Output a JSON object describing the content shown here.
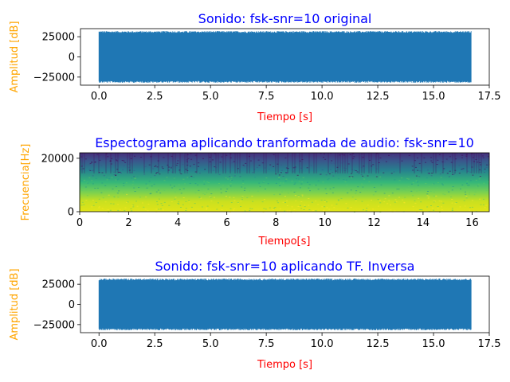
{
  "chart_data": [
    {
      "type": "line",
      "title": "Sonido: fsk-snr=10 original",
      "xlabel": "Tiempo [s]",
      "ylabel": "Amplitud [dB]",
      "xlim": [
        -0.83,
        17.5
      ],
      "ylim": [
        -35000,
        35000
      ],
      "xticks": [
        0.0,
        2.5,
        5.0,
        7.5,
        10.0,
        12.5,
        15.0,
        17.5
      ],
      "xtick_labels": [
        "0.0",
        "2.5",
        "5.0",
        "7.5",
        "10.0",
        "12.5",
        "15.0",
        "17.5"
      ],
      "yticks": [
        25000,
        0,
        -25000
      ],
      "ytick_labels": [
        "25000",
        "0",
        "−25000"
      ],
      "series": [
        {
          "x_range": [
            0,
            16.7
          ],
          "envelope": [
            -32000,
            32000
          ],
          "color": "#1f77b4"
        }
      ],
      "grid": false
    },
    {
      "type": "heatmap",
      "title": "Espectograma aplicando tranformada de audio: fsk-snr=10",
      "xlabel": "Tiempo[s]",
      "ylabel": "Frecuencia[Hz]",
      "xlim": [
        0,
        16.7
      ],
      "ylim": [
        0,
        22050
      ],
      "xticks": [
        0,
        2,
        4,
        6,
        8,
        10,
        12,
        14,
        16
      ],
      "xtick_labels": [
        "0",
        "2",
        "4",
        "6",
        "8",
        "10",
        "12",
        "14",
        "16"
      ],
      "yticks": [
        20000,
        0
      ],
      "ytick_labels": [
        "20000",
        "0"
      ],
      "colormap": [
        "#440154",
        "#3b528b",
        "#21918c",
        "#5ec962",
        "#fde725"
      ],
      "grid": false
    },
    {
      "type": "line",
      "title": "Sonido: fsk-snr=10 aplicando TF. Inversa",
      "xlabel": "Tiempo [s]",
      "ylabel": "Amplitud [dB]",
      "xlim": [
        -0.83,
        17.5
      ],
      "ylim": [
        -35000,
        35000
      ],
      "xticks": [
        0.0,
        2.5,
        5.0,
        7.5,
        10.0,
        12.5,
        15.0,
        17.5
      ],
      "xtick_labels": [
        "0.0",
        "2.5",
        "5.0",
        "7.5",
        "10.0",
        "12.5",
        "15.0",
        "17.5"
      ],
      "yticks": [
        25000,
        0,
        -25000
      ],
      "ytick_labels": [
        "25000",
        "0",
        "−25000"
      ],
      "series": [
        {
          "x_range": [
            0,
            16.7
          ],
          "envelope": [
            -32000,
            32000
          ],
          "color": "#1f77b4"
        }
      ],
      "grid": false
    }
  ],
  "colors": {
    "title": "#0000ff",
    "xlabel": "#ff0000",
    "ylabel": "#ffa500",
    "line": "#1f77b4"
  }
}
